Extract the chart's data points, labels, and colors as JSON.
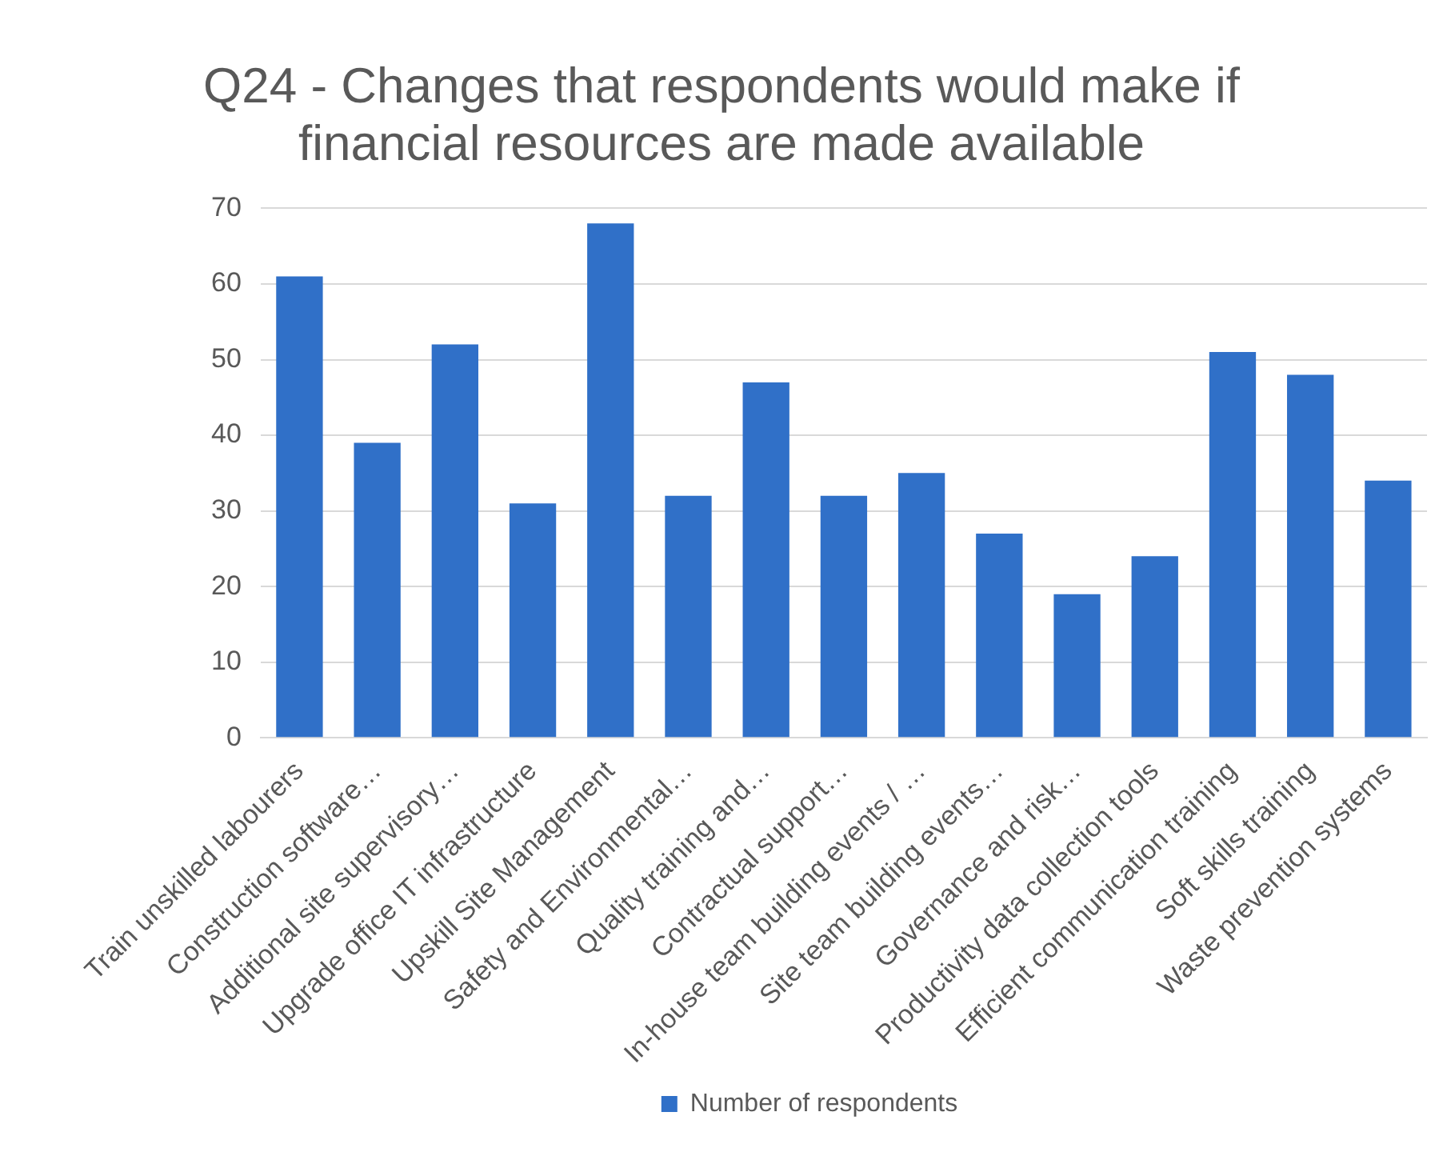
{
  "chart_data": {
    "type": "bar",
    "title": "Q24 - Changes that respondents would make if financial resources are made available",
    "categories": [
      "Train unskilled labourers",
      "Construction software…",
      "Additional site supervisory…",
      "Upgrade office IT infrastructure",
      "Upskill Site Management",
      "Safety and Environmental…",
      "Quality training and…",
      "Contractual support…",
      "In-house team building events / …",
      "Site team building events…",
      "Governance and risk…",
      "Productivity data collection tools",
      "Efficient communication training",
      "Soft skills training",
      "Waste prevention systems"
    ],
    "series": [
      {
        "name": "Number of respondents",
        "color": "#3070c8",
        "values": [
          61,
          39,
          52,
          31,
          68,
          32,
          47,
          32,
          35,
          27,
          19,
          24,
          51,
          48,
          34
        ]
      }
    ],
    "ylim": [
      0,
      70
    ],
    "yticks": [
      0,
      10,
      20,
      30,
      40,
      50,
      60,
      70
    ],
    "grid": "y",
    "legend": "bottom"
  }
}
